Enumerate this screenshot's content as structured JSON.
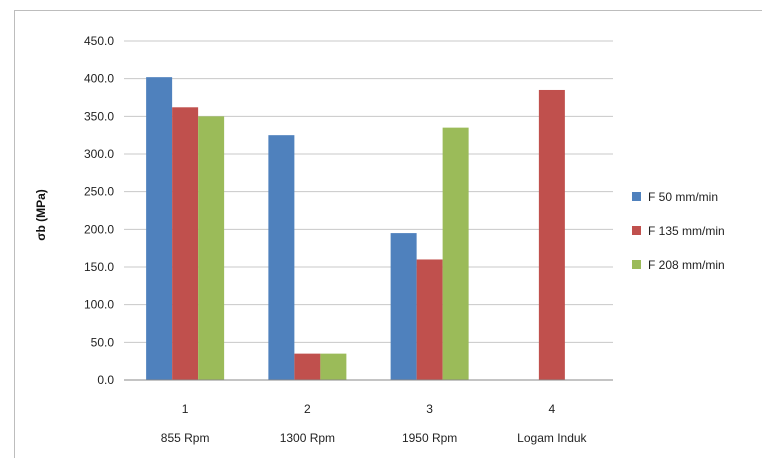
{
  "chart_data": {
    "type": "bar",
    "title": "",
    "xlabel": "",
    "ylabel": "σb (MPa)",
    "ylim": [
      0,
      450
    ],
    "ytick_step": 50,
    "ytick_labels": [
      "0.0",
      "50.0",
      "100.0",
      "150.0",
      "200.0",
      "250.0",
      "300.0",
      "350.0",
      "400.0",
      "450.0"
    ],
    "grid": true,
    "legend_position": "right",
    "categories": [
      "1",
      "2",
      "3",
      "4"
    ],
    "category_sublabels": [
      "855 Rpm",
      "1300 Rpm",
      "1950 Rpm",
      "Logam Induk"
    ],
    "series": [
      {
        "name": "F 50 mm/min",
        "color": "#4f81bd",
        "values": [
          402,
          325,
          195,
          null
        ]
      },
      {
        "name": "F 135 mm/min",
        "color": "#c0504d",
        "values": [
          362,
          35,
          160,
          385
        ]
      },
      {
        "name": "F 208 mm/min",
        "color": "#9bbb59",
        "values": [
          350,
          35,
          335,
          null
        ]
      }
    ]
  }
}
